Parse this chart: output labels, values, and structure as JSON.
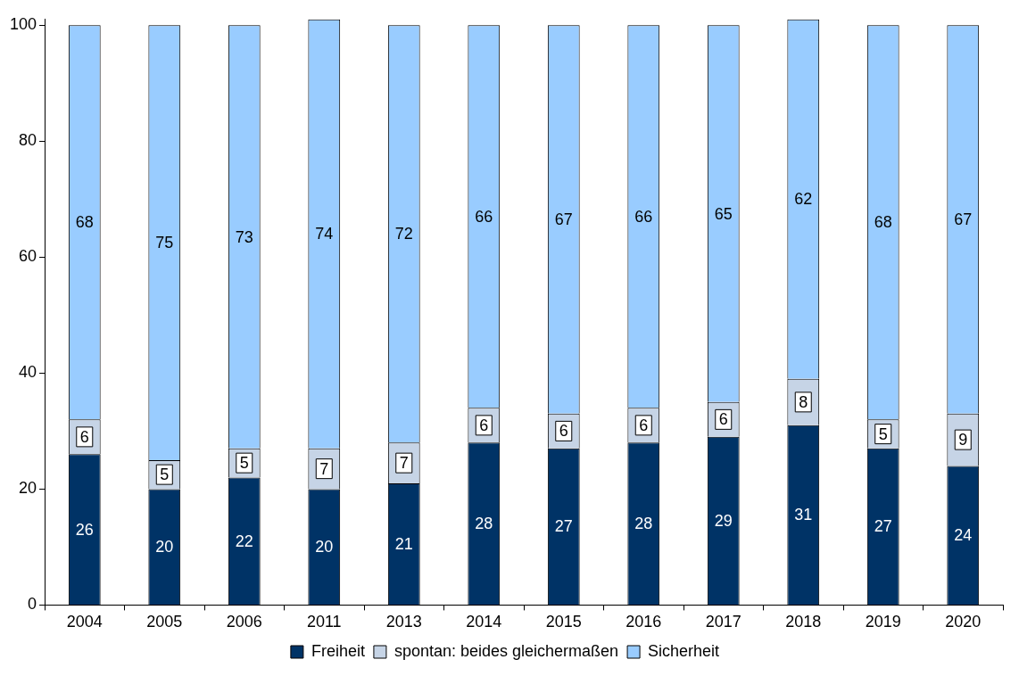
{
  "chart_data": {
    "type": "bar",
    "stacked": true,
    "categories": [
      "2004",
      "2005",
      "2006",
      "2011",
      "2013",
      "2014",
      "2015",
      "2016",
      "2017",
      "2018",
      "2019",
      "2020"
    ],
    "series": [
      {
        "name": "Freiheit",
        "color": "#003366",
        "values": [
          26,
          20,
          22,
          20,
          21,
          28,
          27,
          28,
          29,
          31,
          27,
          24
        ]
      },
      {
        "name": "spontan: beides gleichermaßen",
        "color": "#c6d4e6",
        "values": [
          6,
          5,
          5,
          7,
          7,
          6,
          6,
          6,
          6,
          8,
          5,
          9
        ]
      },
      {
        "name": "Sicherheit",
        "color": "#99ccff",
        "values": [
          68,
          75,
          73,
          74,
          72,
          66,
          67,
          66,
          65,
          62,
          68,
          67
        ]
      }
    ],
    "ylim": [
      0,
      101
    ],
    "yticks": [
      0,
      20,
      40,
      60,
      80,
      100
    ],
    "grid": false,
    "legend": "bottom",
    "data_labels": true
  }
}
